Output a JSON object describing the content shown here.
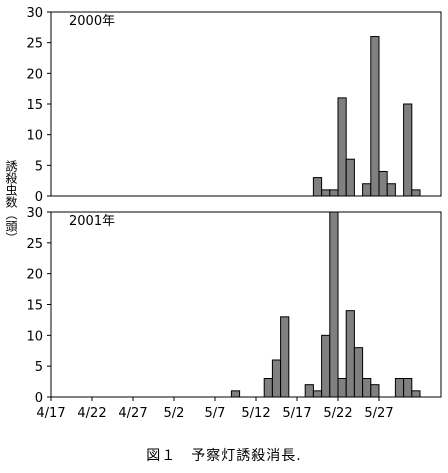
{
  "chart_data": [
    {
      "type": "bar",
      "year_label": "2000年",
      "ylabel": "誘殺虫数（頭）",
      "ylim": [
        0,
        30
      ],
      "yticks": [
        0,
        5,
        10,
        15,
        20,
        25,
        30
      ],
      "xticks": [
        "4/17",
        "4/22",
        "4/27",
        "5/2",
        "5/7",
        "5/12",
        "5/17",
        "5/22",
        "5/27"
      ],
      "x": [
        "5/19",
        "5/20",
        "5/21",
        "5/22",
        "5/23",
        "5/25",
        "5/26",
        "5/27",
        "5/28",
        "5/30",
        "5/31"
      ],
      "values": [
        3,
        1,
        1,
        16,
        6,
        2,
        26,
        4,
        2,
        15,
        1
      ]
    },
    {
      "type": "bar",
      "year_label": "2001年",
      "ylim": [
        0,
        30
      ],
      "yticks": [
        0,
        5,
        10,
        15,
        20,
        25,
        30
      ],
      "xticks": [
        "4/17",
        "4/22",
        "4/27",
        "5/2",
        "5/7",
        "5/12",
        "5/17",
        "5/22",
        "5/27"
      ],
      "x": [
        "5/9",
        "5/13",
        "5/14",
        "5/15",
        "5/18",
        "5/19",
        "5/20",
        "5/21",
        "5/22",
        "5/23",
        "5/24",
        "5/25",
        "5/26",
        "5/29",
        "5/30",
        "5/31"
      ],
      "values": [
        1,
        3,
        6,
        13,
        2,
        1,
        10,
        30,
        3,
        14,
        8,
        3,
        2,
        3,
        3,
        1
      ]
    }
  ],
  "caption": "図１　予察灯誘殺消長."
}
